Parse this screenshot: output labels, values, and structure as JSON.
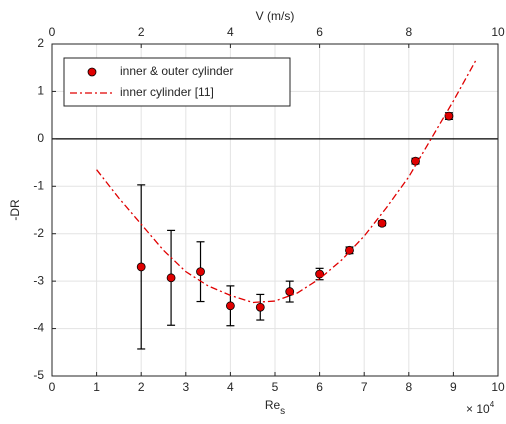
{
  "chart_data": {
    "type": "scatter",
    "xlabel": "Re",
    "xlabel_subscript": "s",
    "x_multiplier": {
      "base": "× 10",
      "exponent": "4"
    },
    "ylabel": "-DR",
    "x2label": "V (m/s)",
    "xlim": [
      0,
      10
    ],
    "xticks": [
      0,
      1,
      2,
      3,
      4,
      5,
      6,
      7,
      8,
      9,
      10
    ],
    "x2lim": [
      0,
      10
    ],
    "x2ticks": [
      0,
      2,
      4,
      6,
      8,
      10
    ],
    "ylim": [
      -5,
      2
    ],
    "yticks": [
      -5,
      -4,
      -3,
      -2,
      -1,
      0,
      1,
      2
    ],
    "grid": true,
    "legend": "upper left",
    "series": [
      {
        "name": "inner & outer cylinder",
        "type": "scatter",
        "color": "#e00000",
        "x": [
          2.0,
          2.67,
          3.33,
          4.0,
          4.67,
          5.33,
          6.0,
          6.67,
          7.4,
          8.15,
          8.9
        ],
        "values": [
          -2.7,
          -2.93,
          -2.8,
          -3.52,
          -3.55,
          -3.22,
          -2.85,
          -2.35,
          -1.78,
          -0.47,
          0.48
        ],
        "errors": [
          1.73,
          1.0,
          0.63,
          0.42,
          0.27,
          0.22,
          0.12,
          0.07,
          0.05,
          0.06,
          0.07
        ]
      },
      {
        "name": "inner cylinder [11]",
        "type": "line",
        "style": "dash-dot",
        "color": "#e00000",
        "x": [
          1,
          1.5,
          2,
          2.5,
          3,
          3.5,
          4,
          4.5,
          5,
          5.5,
          6,
          6.5,
          7,
          7.5,
          8,
          8.5,
          9,
          9.5
        ],
        "values": [
          -0.65,
          -1.25,
          -1.8,
          -2.35,
          -2.8,
          -3.1,
          -3.3,
          -3.45,
          -3.42,
          -3.25,
          -2.95,
          -2.55,
          -2.05,
          -1.45,
          -0.8,
          0.0,
          0.8,
          1.65
        ]
      }
    ]
  }
}
